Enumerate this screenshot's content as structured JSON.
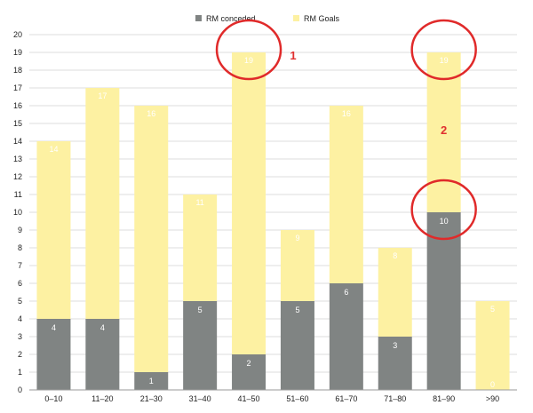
{
  "chart_data": {
    "type": "bar",
    "stacked": true,
    "title": "",
    "xlabel": "",
    "ylabel": "",
    "ylim": [
      0,
      20
    ],
    "y_ticks": [
      0,
      1,
      2,
      3,
      4,
      5,
      6,
      7,
      8,
      9,
      10,
      11,
      12,
      13,
      14,
      15,
      16,
      17,
      18,
      19,
      20
    ],
    "grid": true,
    "legend_position": "top-center",
    "categories": [
      "0–10",
      "11–20",
      "21–30",
      "31–40",
      "41–50",
      "51–60",
      "61–70",
      "71–80",
      "81–90",
      ">90"
    ],
    "series": [
      {
        "name": "RM conceded",
        "color": "#808483",
        "values": [
          4,
          4,
          1,
          5,
          2,
          5,
          6,
          3,
          10,
          0
        ]
      },
      {
        "name": "RM Goals",
        "color": "#fdf1a2",
        "totals": [
          14,
          17,
          16,
          11,
          19,
          9,
          16,
          8,
          19,
          5
        ]
      }
    ],
    "annotations": [
      {
        "text": "1",
        "category": "41–50"
      },
      {
        "text": "2",
        "category": "81–90"
      }
    ],
    "highlight_circles": [
      {
        "category": "41–50",
        "value": 19
      },
      {
        "category": "81–90",
        "value": 19
      },
      {
        "category": "81–90",
        "value": 10
      }
    ]
  }
}
